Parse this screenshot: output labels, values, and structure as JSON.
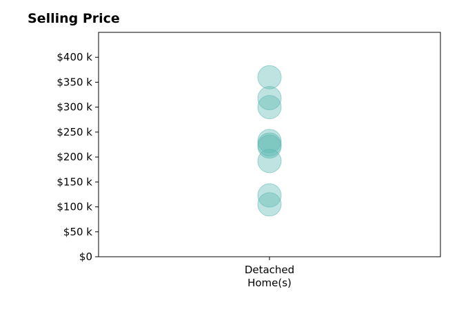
{
  "chart_data": {
    "type": "scatter",
    "title": "Selling Price",
    "xlabel": "",
    "ylabel": "",
    "categories": [
      "Detached\nHome(s)"
    ],
    "ylim": [
      0,
      450000
    ],
    "y_ticks": [
      {
        "value": 0,
        "label": "$0"
      },
      {
        "value": 50000,
        "label": "$50 k"
      },
      {
        "value": 100000,
        "label": "$100 k"
      },
      {
        "value": 150000,
        "label": "$150 k"
      },
      {
        "value": 200000,
        "label": "$200 k"
      },
      {
        "value": 250000,
        "label": "$250 k"
      },
      {
        "value": 300000,
        "label": "$300 k"
      },
      {
        "value": 350000,
        "label": "$350 k"
      },
      {
        "value": 400000,
        "label": "$400 k"
      }
    ],
    "series": [
      {
        "category": "Detached\nHome(s)",
        "values": [
          360000,
          318000,
          300000,
          232000,
          225000,
          221000,
          192000,
          123000,
          105000
        ]
      }
    ],
    "grid": false,
    "legend": "none",
    "point_color": "#5cb8b2"
  }
}
